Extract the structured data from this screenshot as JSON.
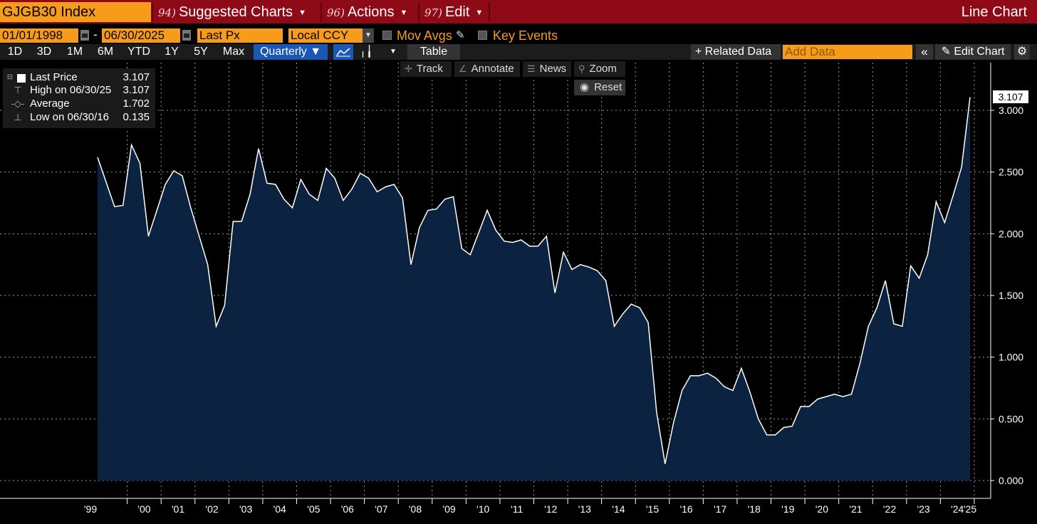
{
  "topbar": {
    "ticker": "GJGB30 Index",
    "menus": [
      {
        "num": "94)",
        "label": "Suggested Charts"
      },
      {
        "num": "96)",
        "label": "Actions"
      },
      {
        "num": "97)",
        "label": "Edit"
      }
    ],
    "chart_type": "Line Chart"
  },
  "controls": {
    "start_date": "01/01/1998",
    "date_sep": "-",
    "end_date": "06/30/2025",
    "field": "Last Px",
    "currency": "Local CCY",
    "mov_avgs": "Mov Avgs",
    "key_events": "Key Events"
  },
  "toolbar": {
    "periods": [
      "1D",
      "3D",
      "1M",
      "6M",
      "YTD",
      "1Y",
      "5Y",
      "Max"
    ],
    "frequency": "Quarterly ▼",
    "table": "Table",
    "related_data": "+ Related Data",
    "add_data_placeholder": "Add Data",
    "edit_chart": "Edit Chart"
  },
  "chart_tools": {
    "track": "Track",
    "annotate": "Annotate",
    "news": "News",
    "zoom": "Zoom",
    "reset": "Reset"
  },
  "legend": [
    {
      "label": "Last Price",
      "value": "3.107"
    },
    {
      "label": "High on 06/30/25",
      "value": "3.107"
    },
    {
      "label": "Average",
      "value": "1.702"
    },
    {
      "label": "Low on 06/30/16",
      "value": "0.135"
    }
  ],
  "last_value_label": "3.107",
  "colors": {
    "accent_orange": "#f79b1b",
    "topbar_red": "#8e0a16",
    "area_fill": "#0b2340",
    "line": "#ffffff",
    "selected_blue": "#1b58b4"
  },
  "chart_data": {
    "type": "area",
    "series": [
      {
        "values": [
          2.62,
          2.42,
          2.22,
          2.23,
          2.72,
          2.57,
          1.98,
          2.19,
          2.4,
          2.51,
          2.47,
          2.21,
          1.98,
          1.75,
          1.25,
          1.42,
          2.1,
          2.1,
          2.32,
          2.69,
          2.41,
          2.4,
          2.28,
          2.21,
          2.44,
          2.32,
          2.27,
          2.53,
          2.45,
          2.27,
          2.36,
          2.49,
          2.45,
          2.34,
          2.38,
          2.4,
          2.29,
          1.75,
          2.05,
          2.19,
          2.2,
          2.28,
          2.3,
          1.88,
          1.83,
          2.01,
          2.19,
          2.03,
          1.94,
          1.93,
          1.95,
          1.9,
          1.9,
          1.98,
          1.52,
          1.85,
          1.71,
          1.75,
          1.73,
          1.7,
          1.62,
          1.25,
          1.35,
          1.43,
          1.4,
          1.28,
          0.55,
          0.135,
          0.47,
          0.73,
          0.85,
          0.85,
          0.87,
          0.83,
          0.76,
          0.73,
          0.91,
          0.72,
          0.5,
          0.37,
          0.37,
          0.43,
          0.44,
          0.6,
          0.6,
          0.66,
          0.68,
          0.7,
          0.68,
          0.7,
          0.95,
          1.25,
          1.4,
          1.62,
          1.27,
          1.25,
          1.74,
          1.64,
          1.83,
          2.26,
          2.09,
          2.31,
          2.54,
          3.107
        ]
      }
    ],
    "x_start": "1999 Q1",
    "x_end": "2025 Q2",
    "x_tick_labels": [
      "'99",
      "'00",
      "'01",
      "'02",
      "'03",
      "'04",
      "'05",
      "'06",
      "'07",
      "'08",
      "'09",
      "'10",
      "'11",
      "'12",
      "'13",
      "'14",
      "'15",
      "'16",
      "'17",
      "'18",
      "'19",
      "'20",
      "'21",
      "'22",
      "'23",
      "'24",
      "'25"
    ],
    "y_tick_labels": [
      "0.000",
      "0.500",
      "1.000",
      "1.500",
      "2.000",
      "2.500",
      "3.000"
    ],
    "ylim": [
      0,
      3.0
    ],
    "grid": true
  }
}
